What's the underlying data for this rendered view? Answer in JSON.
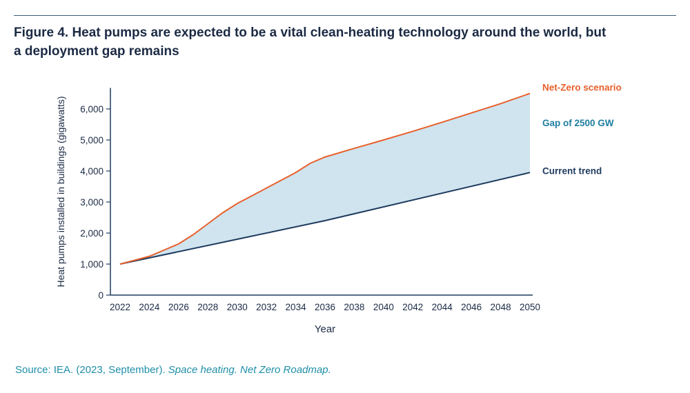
{
  "figure": {
    "title": "Figure 4. Heat pumps are expected to be a vital clean-heating technology around the world, but a deployment gap remains"
  },
  "source": {
    "prefix": "Source: IEA. (2023, September). ",
    "italic": "Space heating. Net Zero Roadmap."
  },
  "colors": {
    "net_zero": "#e8602c",
    "current_trend": "#1e3a5f",
    "gap_fill": "#cfe4ee",
    "gap_label": "#1f7ea0",
    "axis": "#1e3a5f"
  },
  "chart_data": {
    "type": "area",
    "xlabel": "Year",
    "ylabel": "Heat pumps installed in buildings (gigawatts)",
    "xlim": [
      2022,
      2050
    ],
    "ylim": [
      0,
      6500
    ],
    "x_ticks": [
      2022,
      2024,
      2026,
      2028,
      2030,
      2032,
      2034,
      2036,
      2038,
      2040,
      2042,
      2044,
      2046,
      2048,
      2050
    ],
    "y_ticks": [
      0,
      1000,
      2000,
      3000,
      4000,
      5000,
      6000
    ],
    "y_tick_labels": [
      "0",
      "1,000",
      "2,000",
      "3,000",
      "4,000",
      "5,000",
      "6,000"
    ],
    "grid": false,
    "series": [
      {
        "name": "Net-Zero scenario",
        "x": [
          2022,
          2024,
          2025,
          2026,
          2027,
          2028,
          2029,
          2030,
          2032,
          2034,
          2035,
          2036,
          2038,
          2040,
          2042,
          2044,
          2046,
          2048,
          2050
        ],
        "values": [
          1000,
          1250,
          1450,
          1650,
          1950,
          2300,
          2650,
          2950,
          3450,
          3950,
          4250,
          4450,
          4730,
          5000,
          5280,
          5570,
          5870,
          6170,
          6500
        ]
      },
      {
        "name": "Current trend",
        "x": [
          2022,
          2030,
          2036,
          2050
        ],
        "values": [
          1000,
          1800,
          2400,
          3950
        ]
      }
    ],
    "annotations": [
      {
        "text": "Gap of 2500 GW",
        "x": 2050,
        "y": 5450
      }
    ]
  }
}
